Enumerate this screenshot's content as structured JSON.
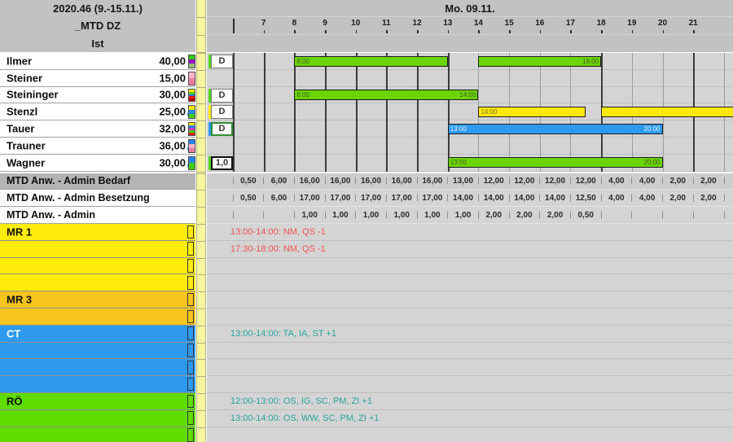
{
  "left_header": {
    "week": "2020.46 (9.-15.11.)",
    "unit": "_MTD DZ",
    "view": "Ist"
  },
  "timeline": {
    "date": "Mo. 09.11.",
    "hour_labels": [
      "7",
      "8",
      "9",
      "10",
      "11",
      "12",
      "13",
      "14",
      "15",
      "16",
      "17",
      "18",
      "19",
      "20",
      "21"
    ],
    "hour_start": 6,
    "hour_end": 22
  },
  "employees": [
    {
      "name": "Ilmer",
      "hours": "40,00",
      "info": false,
      "stripe": [
        "#33cc00",
        "#9900cc",
        "#99bb77"
      ],
      "shift": {
        "label": "D",
        "tick": "#55d317",
        "style": "normal"
      },
      "bars": [
        {
          "from": 8,
          "to": 13,
          "color": "green",
          "start_label": "8:00"
        },
        {
          "from": 14,
          "to": 18,
          "color": "green",
          "end_label": "18:00"
        }
      ]
    },
    {
      "name": "Steiner",
      "hours": "15,00",
      "info": false,
      "stripe": [
        "#ffb3c8",
        "#ec7fa0"
      ],
      "shift": null,
      "bars": []
    },
    {
      "name": "Steininger",
      "hours": "30,00",
      "info": false,
      "stripe": [
        "#ffe800",
        "#55cc00",
        "#2277dd",
        "#ee1100",
        "#bb0000"
      ],
      "shift": {
        "label": "D",
        "tick": "#55d317",
        "style": "normal"
      },
      "bars": [
        {
          "from": 8,
          "to": 14,
          "color": "green",
          "start_label": "8:00",
          "end_label": "14:00"
        }
      ]
    },
    {
      "name": "Stenzl",
      "hours": "25,00",
      "info": true,
      "stripe": [
        "#ffe800",
        "#2288ee",
        "#44cc00"
      ],
      "shift": {
        "label": "D",
        "tick": "#ffe800",
        "style": "normal"
      },
      "bars": [
        {
          "from": 14,
          "to": 17.5,
          "color": "yellow",
          "start_label": "14:00"
        },
        {
          "from": 18,
          "to": 22.4,
          "color": "yellow"
        }
      ]
    },
    {
      "name": "Tauer",
      "hours": "32,00",
      "info": false,
      "stripe": [
        "#ffe800",
        "#2288ee",
        "#cc33cc",
        "#44cc00",
        "#dd2200"
      ],
      "shift": {
        "label": "D",
        "tick": "#2d9af0",
        "style": "selected"
      },
      "bars": [
        {
          "from": 13,
          "to": 20,
          "color": "blue",
          "start_label": "13:00",
          "end_label": "20:00"
        }
      ]
    },
    {
      "name": "Trauner",
      "hours": "36,00",
      "info": true,
      "stripe": [
        "#2288ee",
        "#ffb3c8",
        "#ec7fa0"
      ],
      "shift": null,
      "bars": []
    },
    {
      "name": "Wagner",
      "hours": "30,00",
      "info": true,
      "stripe": [
        "#2288ee",
        "#44cc00"
      ],
      "shift": {
        "label": "1,0",
        "tick": "#55d317",
        "style": "black"
      },
      "bars": [
        {
          "from": 13,
          "to": 20,
          "color": "green",
          "start_label": "13:00",
          "end_label": "20:00"
        }
      ]
    }
  ],
  "summary_rows": [
    {
      "label": "MTD Anw. - Admin Bedarf",
      "emphasis": true,
      "values": [
        "0,50",
        "6,00",
        "16,00",
        "16,00",
        "16,00",
        "16,00",
        "16,00",
        "13,00",
        "12,00",
        "12,00",
        "12,00",
        "12,00",
        "4,00",
        "4,00",
        "2,00",
        "2,00"
      ]
    },
    {
      "label": "MTD Anw. - Admin Besetzung",
      "emphasis": false,
      "values": [
        "0,50",
        "6,00",
        "17,00",
        "17,00",
        "17,00",
        "17,00",
        "17,00",
        "14,00",
        "14,00",
        "14,00",
        "14,00",
        "12,50",
        "4,00",
        "4,00",
        "2,00",
        "2,00"
      ]
    },
    {
      "label": "MTD Anw. - Admin",
      "emphasis": false,
      "values": [
        "",
        "",
        "1,00",
        "1,00",
        "1,00",
        "1,00",
        "1,00",
        "1,00",
        "2,00",
        "2,00",
        "2,00",
        "0,50",
        "",
        "",
        "",
        ""
      ]
    }
  ],
  "sections": [
    {
      "label": "MR 1",
      "color": "#ffec0a",
      "label_color": "#111111",
      "rows": 4,
      "annotations": [
        {
          "row": 0,
          "text": "13:00-14:00: NM, QS -1",
          "type": "deficit"
        },
        {
          "row": 1,
          "text": "17:30-18:00: NM, QS -1",
          "type": "deficit"
        }
      ]
    },
    {
      "label": "MR 3",
      "color": "#f6c41c",
      "label_color": "#111111",
      "rows": 2,
      "annotations": []
    },
    {
      "label": "CT",
      "color": "#2d9af0",
      "label_color": "#ffffff",
      "rows": 4,
      "annotations": [
        {
          "row": 0,
          "text": "13:00-14:00: TA, IA, ST +1",
          "type": "surplus"
        }
      ]
    },
    {
      "label": "RÖ",
      "color": "#5fdc00",
      "label_color": "#111111",
      "rows": 3,
      "annotations": [
        {
          "row": 0,
          "text": "12:00-13:00: OS, IG, SC, PM, ZI +1",
          "type": "surplus"
        },
        {
          "row": 1,
          "text": "13:00-14:00: OS, WW, SC, PM, ZI +1",
          "type": "surplus"
        }
      ]
    }
  ],
  "colors": {
    "bar_green": "#6ad405",
    "bar_yellow": "#ffe90a",
    "bar_blue": "#2d9af0",
    "deficit_text": "#ef5350",
    "surplus_text": "#27a59d",
    "selected_border": "#2e8b2e",
    "header_bg": "#c2c2c2",
    "row_bg": "#d4d4d4",
    "demand_label_bg": "#b4b4b4"
  }
}
